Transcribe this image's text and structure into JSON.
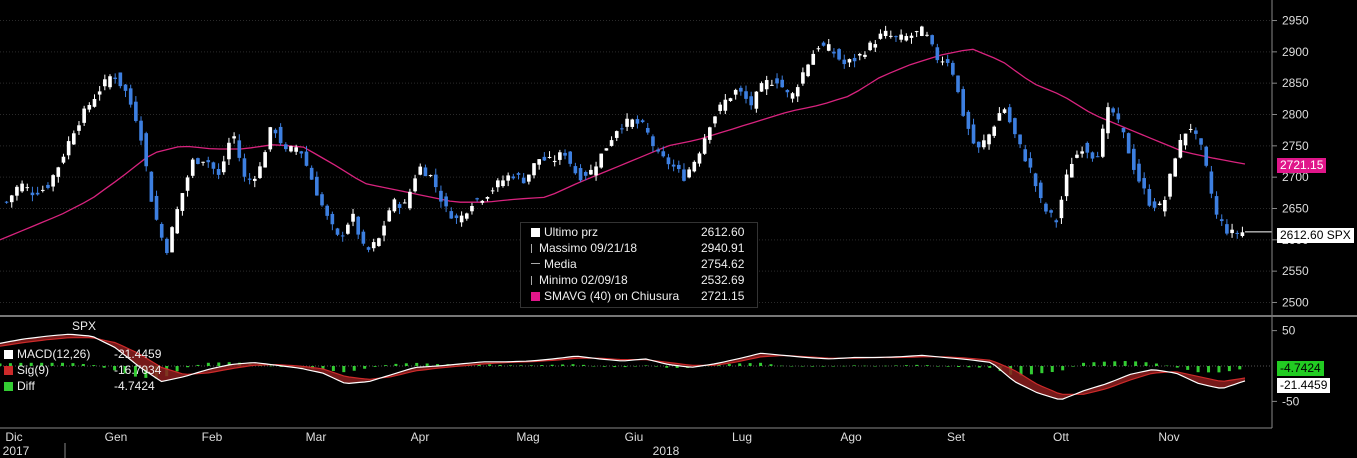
{
  "chart_data": {
    "type": "candlestick",
    "ticker": "SPX",
    "y_range": [
      2480,
      2970
    ],
    "y_ticks": [
      2500,
      2550,
      2600,
      2650,
      2700,
      2750,
      2800,
      2850,
      2900,
      2950
    ],
    "price_path": [
      2660,
      2690,
      2675,
      2683,
      2722,
      2773,
      2809,
      2840,
      2866,
      2835,
      2780,
      2652,
      2580,
      2660,
      2725,
      2730,
      2700,
      2775,
      2690,
      2710,
      2785,
      2740,
      2750,
      2695,
      2640,
      2600,
      2640,
      2578,
      2600,
      2660,
      2655,
      2718,
      2700,
      2650,
      2630,
      2660,
      2670,
      2690,
      2705,
      2695,
      2730,
      2725,
      2740,
      2700,
      2710,
      2744,
      2780,
      2790,
      2780,
      2735,
      2720,
      2700,
      2735,
      2790,
      2820,
      2840,
      2815,
      2850,
      2855,
      2825,
      2870,
      2910,
      2905,
      2880,
      2890,
      2910,
      2930,
      2920,
      2925,
      2935,
      2890,
      2885,
      2800,
      2740,
      2770,
      2815,
      2760,
      2715,
      2650,
      2630,
      2720,
      2750,
      2730,
      2815,
      2770,
      2705,
      2660,
      2650,
      2740,
      2785,
      2740,
      2640,
      2610,
      2612
    ],
    "sma_path": [
      2600,
      2620,
      2640,
      2665,
      2700,
      2738,
      2750,
      2745,
      2745,
      2752,
      2748,
      2720,
      2690,
      2680,
      2670,
      2660,
      2660,
      2665,
      2668,
      2690,
      2710,
      2730,
      2750,
      2760,
      2775,
      2790,
      2805,
      2815,
      2830,
      2860,
      2880,
      2895,
      2905,
      2885,
      2850,
      2830,
      2800,
      2780,
      2760,
      2740,
      2730,
      2721
    ],
    "macd_axis": {
      "ticks": [
        50,
        -50
      ],
      "range": [
        -65,
        65
      ]
    },
    "macd_path": [
      32,
      38,
      42,
      45,
      42,
      26,
      0,
      -22,
      -15,
      -5,
      2,
      5,
      1,
      -3,
      -10,
      -25,
      -22,
      -12,
      -2,
      0,
      3,
      6,
      6,
      7,
      10,
      14,
      10,
      7,
      10,
      2,
      -2,
      3,
      10,
      18,
      15,
      12,
      10,
      12,
      12,
      13,
      15,
      12,
      9,
      5,
      -22,
      -38,
      -48,
      -35,
      -25,
      -12,
      -5,
      -10,
      -25,
      -32,
      -21
    ],
    "sig_path": [
      28,
      33,
      37,
      40,
      40,
      33,
      18,
      -2,
      -12,
      -10,
      -4,
      1,
      2,
      0,
      -4,
      -15,
      -19,
      -15,
      -7,
      -3,
      0,
      3,
      5,
      6,
      8,
      11,
      11,
      9,
      9,
      5,
      1,
      1,
      6,
      13,
      15,
      13,
      11,
      11,
      12,
      12,
      13,
      13,
      11,
      8,
      -6,
      -26,
      -40,
      -40,
      -32,
      -20,
      -10,
      -8,
      -15,
      -22,
      -17
    ],
    "months": [
      {
        "label": "Dic",
        "year": "2017"
      },
      {
        "label": "Gen",
        "year": ""
      },
      {
        "label": "Feb",
        "year": ""
      },
      {
        "label": "Mar",
        "year": ""
      },
      {
        "label": "Apr",
        "year": ""
      },
      {
        "label": "Mag",
        "year": ""
      },
      {
        "label": "Giu",
        "year": "2018"
      },
      {
        "label": "Lug",
        "year": ""
      },
      {
        "label": "Ago",
        "year": ""
      },
      {
        "label": "Set",
        "year": ""
      },
      {
        "label": "Ott",
        "year": ""
      },
      {
        "label": "Nov",
        "year": ""
      }
    ],
    "legend": {
      "last": {
        "label": "Ultimo prz",
        "value": "2612.60"
      },
      "high": {
        "label": "Massimo 09/21/18",
        "value": "2940.91"
      },
      "mean": {
        "label": "Media",
        "value": "2754.62"
      },
      "low": {
        "label": "Minimo 02/09/18",
        "value": "2532.69"
      },
      "sma": {
        "label": "SMAVG (40)  on Chiusura",
        "value": "2721.15"
      }
    },
    "badges": {
      "sma": "2721.15",
      "last": "2612.60 SPX",
      "diff": "-4.7424",
      "macd": "-21.4459"
    },
    "macd_legend": {
      "title": "SPX",
      "macd": {
        "label": "MACD(12,26)",
        "value": "-21.4459"
      },
      "sig": {
        "label": "Sig(9)",
        "value": "-16.7034"
      },
      "diff": {
        "label": "Diff",
        "value": "-4.7424"
      }
    },
    "colors": {
      "up": "#ffffff",
      "down": "#3d7fe0",
      "sma": "#d8237e",
      "macd": "#ffffff",
      "sig": "#cc2a2a",
      "diff": "#33cc33",
      "last_badge": "#ffffff",
      "sma_badge": "#e0168a"
    }
  }
}
